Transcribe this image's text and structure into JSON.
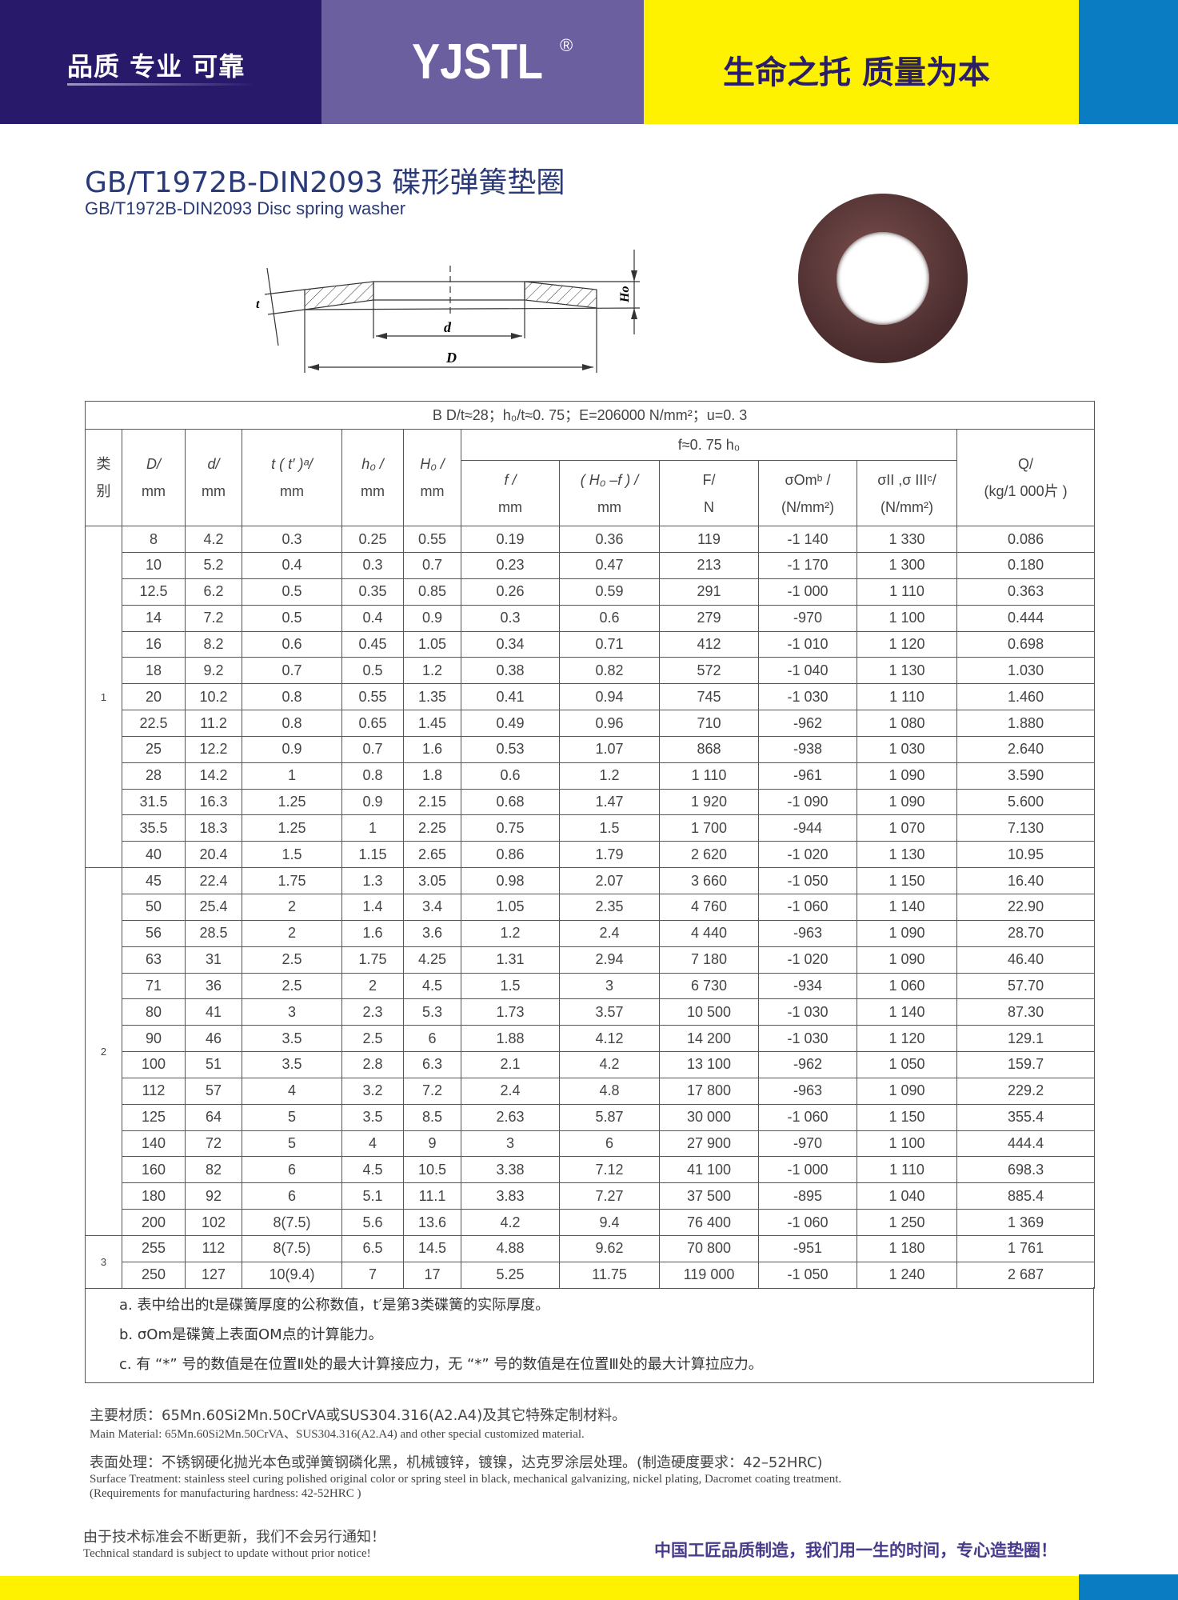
{
  "header": {
    "slogan_left": "品质 专业 可靠",
    "logo": "YJSTL",
    "logo_mark": "®",
    "slogan_right": "生命之托 质量为本",
    "colors": {
      "navy": "#29196b",
      "purple": "#6b5f9f",
      "yellow": "#fff200",
      "blue": "#0a7cc2"
    }
  },
  "title": "GB/T1972B-DIN2093 碟形弹簧垫圈",
  "subtitle": "GB/T1972B-DIN2093 Disc spring washer",
  "diagram": {
    "label_t": "t",
    "label_d": "d",
    "label_D": "D",
    "label_H0": "Ho"
  },
  "table": {
    "caption": "B  D/t≈28；h₀/t≈0. 75；E=206000   N/mm²；u=0. 3",
    "group_header": "f≈0. 75 h₀",
    "columns": [
      {
        "top": "类",
        "bottom": "别"
      },
      {
        "top": "D/",
        "bottom": "mm"
      },
      {
        "top": "d/",
        "bottom": "mm"
      },
      {
        "top": "t ( t′ )ᵃ/",
        "bottom": "mm"
      },
      {
        "top": "h₀ /",
        "bottom": "mm"
      },
      {
        "top": "H₀ /",
        "bottom": "mm"
      },
      {
        "top": "f /",
        "bottom": "mm"
      },
      {
        "top": "( H₀ –f  ) /",
        "bottom": "mm"
      },
      {
        "top": "F/",
        "bottom": "N"
      },
      {
        "top": "σOmᵇ /",
        "bottom": "(N/mm²)"
      },
      {
        "top": "σII ,σ IIIᶜ/",
        "bottom": "(N/mm²)"
      },
      {
        "top": "Q/",
        "bottom": "(kg/1 000片 )"
      }
    ],
    "groups": [
      {
        "label": "1",
        "rows": [
          [
            "8",
            "4.2",
            "0.3",
            "0.25",
            "0.55",
            "0.19",
            "0.36",
            "119",
            "-1 140",
            "1 330",
            "0.086"
          ],
          [
            "10",
            "5.2",
            "0.4",
            "0.3",
            "0.7",
            "0.23",
            "0.47",
            "213",
            "-1 170",
            "1 300",
            "0.180"
          ],
          [
            "12.5",
            "6.2",
            "0.5",
            "0.35",
            "0.85",
            "0.26",
            "0.59",
            "291",
            "-1 000",
            "1 110",
            "0.363"
          ],
          [
            "14",
            "7.2",
            "0.5",
            "0.4",
            "0.9",
            "0.3",
            "0.6",
            "279",
            "-970",
            "1 100",
            "0.444"
          ],
          [
            "16",
            "8.2",
            "0.6",
            "0.45",
            "1.05",
            "0.34",
            "0.71",
            "412",
            "-1 010",
            "1 120",
            "0.698"
          ],
          [
            "18",
            "9.2",
            "0.7",
            "0.5",
            "1.2",
            "0.38",
            "0.82",
            "572",
            "-1 040",
            "1 130",
            "1.030"
          ],
          [
            "20",
            "10.2",
            "0.8",
            "0.55",
            "1.35",
            "0.41",
            "0.94",
            "745",
            "-1 030",
            "1 110",
            "1.460"
          ],
          [
            "22.5",
            "11.2",
            "0.8",
            "0.65",
            "1.45",
            "0.49",
            "0.96",
            "710",
            "-962",
            "1 080",
            "1.880"
          ],
          [
            "25",
            "12.2",
            "0.9",
            "0.7",
            "1.6",
            "0.53",
            "1.07",
            "868",
            "-938",
            "1 030",
            "2.640"
          ],
          [
            "28",
            "14.2",
            "1",
            "0.8",
            "1.8",
            "0.6",
            "1.2",
            "1 110",
            "-961",
            "1 090",
            "3.590"
          ],
          [
            "31.5",
            "16.3",
            "1.25",
            "0.9",
            "2.15",
            "0.68",
            "1.47",
            "1 920",
            "-1 090",
            "1 090",
            "5.600"
          ],
          [
            "35.5",
            "18.3",
            "1.25",
            "1",
            "2.25",
            "0.75",
            "1.5",
            "1 700",
            "-944",
            "1 070",
            "7.130"
          ],
          [
            "40",
            "20.4",
            "1.5",
            "1.15",
            "2.65",
            "0.86",
            "1.79",
            "2 620",
            "-1 020",
            "1 130",
            "10.95"
          ]
        ]
      },
      {
        "label": "2",
        "rows": [
          [
            "45",
            "22.4",
            "1.75",
            "1.3",
            "3.05",
            "0.98",
            "2.07",
            "3 660",
            "-1 050",
            "1 150",
            "16.40"
          ],
          [
            "50",
            "25.4",
            "2",
            "1.4",
            "3.4",
            "1.05",
            "2.35",
            "4 760",
            "-1 060",
            "1 140",
            "22.90"
          ],
          [
            "56",
            "28.5",
            "2",
            "1.6",
            "3.6",
            "1.2",
            "2.4",
            "4 440",
            "-963",
            "1 090",
            "28.70"
          ],
          [
            "63",
            "31",
            "2.5",
            "1.75",
            "4.25",
            "1.31",
            "2.94",
            "7 180",
            "-1 020",
            "1 090",
            "46.40"
          ],
          [
            "71",
            "36",
            "2.5",
            "2",
            "4.5",
            "1.5",
            "3",
            "6 730",
            "-934",
            "1 060",
            "57.70"
          ],
          [
            "80",
            "41",
            "3",
            "2.3",
            "5.3",
            "1.73",
            "3.57",
            "10 500",
            "-1 030",
            "1 140",
            "87.30"
          ],
          [
            "90",
            "46",
            "3.5",
            "2.5",
            "6",
            "1.88",
            "4.12",
            "14 200",
            "-1 030",
            "1 120",
            "129.1"
          ],
          [
            "100",
            "51",
            "3.5",
            "2.8",
            "6.3",
            "2.1",
            "4.2",
            "13 100",
            "-962",
            "1 050",
            "159.7"
          ],
          [
            "112",
            "57",
            "4",
            "3.2",
            "7.2",
            "2.4",
            "4.8",
            "17 800",
            "-963",
            "1 090",
            "229.2"
          ],
          [
            "125",
            "64",
            "5",
            "3.5",
            "8.5",
            "2.63",
            "5.87",
            "30 000",
            "-1 060",
            "1 150",
            "355.4"
          ],
          [
            "140",
            "72",
            "5",
            "4",
            "9",
            "3",
            "6",
            "27 900",
            "-970",
            "1 100",
            "444.4"
          ],
          [
            "160",
            "82",
            "6",
            "4.5",
            "10.5",
            "3.38",
            "7.12",
            "41 100",
            "-1 000",
            "1 110",
            "698.3"
          ],
          [
            "180",
            "92",
            "6",
            "5.1",
            "11.1",
            "3.83",
            "7.27",
            "37 500",
            "-895",
            "1 040",
            "885.4"
          ],
          [
            "200",
            "102",
            "8(7.5)",
            "5.6",
            "13.6",
            "4.2",
            "9.4",
            "76 400",
            "-1 060",
            "1 250",
            "1 369"
          ]
        ]
      },
      {
        "label": "3",
        "rows": [
          [
            "255",
            "112",
            "8(7.5)",
            "6.5",
            "14.5",
            "4.88",
            "9.62",
            "70 800",
            "-951",
            "1 180",
            "1 761"
          ],
          [
            "250",
            "127",
            "10(9.4)",
            "7",
            "17",
            "5.25",
            "11.75",
            "119 000",
            "-1 050",
            "1 240",
            "2 687"
          ]
        ]
      }
    ]
  },
  "notes": [
    "a.  表中给出的t是碟簧厚度的公称数值，t′是第3类碟簧的实际厚度。",
    "b.  σOm是碟簧上表面OM点的计算能力。",
    "c. 有 “*” 号的数值是在位置Ⅱ处的最大计算接应力，无 “*” 号的数值是在位置Ⅲ处的最大计算拉应力。"
  ],
  "material": {
    "cn": "主要材质：65Mn.60Si2Mn.50CrVA或SUS304.316(A2.A4)及其它特殊定制材料。",
    "en": "Main Material: 65Mn.60Si2Mn.50CrVA、SUS304.316(A2.A4) and other special customized material."
  },
  "surface": {
    "cn": "表面处理：不锈钢硬化抛光本色或弹簧钢磷化黑，机械镀锌，镀镍，达克罗涂层处理。(制造硬度要求：42–52HRC)",
    "en1": "Surface Treatment: stainless steel curing polished original color or spring steel in black, mechanical galvanizing, nickel plating, Dacromet coating treatment.",
    "en2": "(Requirements for manufacturing hardness: 42-52HRC )"
  },
  "footer": {
    "notice_cn": "由于技术标准会不断更新，我们不会另行通知！",
    "notice_en": "Technical standard is subject to update without prior notice!",
    "slogan": "中国工匠品质制造，我们用一生的时间，专心造垫圈！"
  }
}
